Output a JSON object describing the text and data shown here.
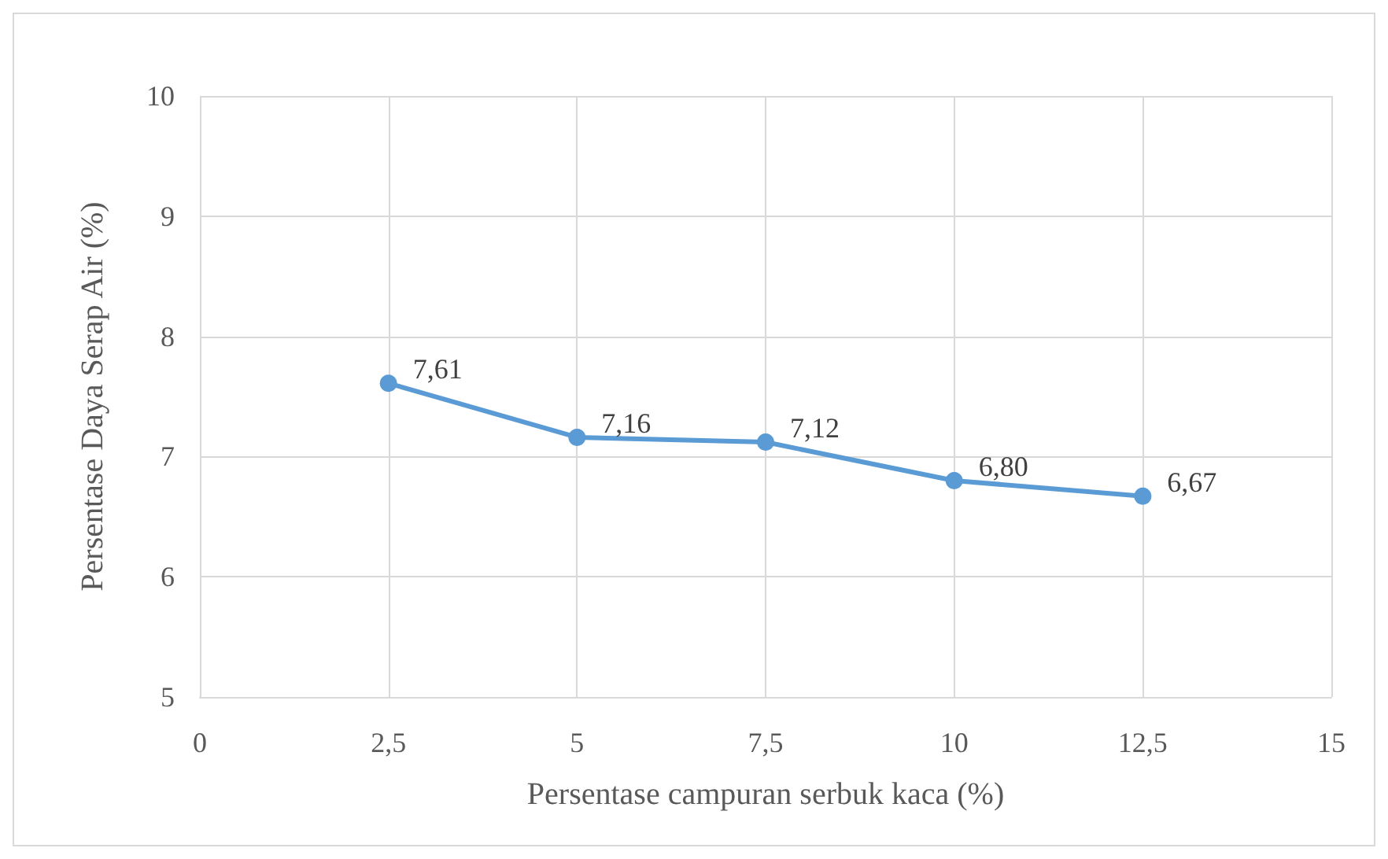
{
  "chart_data": {
    "type": "line",
    "xlabel": "Persentase campuran serbuk kaca (%)",
    "ylabel": "Persentase Daya Serap Air (%)",
    "x": [
      2.5,
      5,
      7.5,
      10,
      12.5
    ],
    "series": [
      {
        "color": "#5b9bd5",
        "values": [
          7.61,
          7.16,
          7.12,
          6.8,
          6.67
        ],
        "value_labels": [
          "7,61",
          "7,16",
          "7,12",
          "6,80",
          "6,67"
        ]
      }
    ],
    "xlim": [
      0,
      15
    ],
    "xticks": [
      0,
      {
        "value": 2.5,
        "label": "2,5"
      },
      5,
      {
        "value": 7.5,
        "label": "7,5"
      },
      10,
      {
        "value": 12.5,
        "label": "12,5"
      },
      15
    ],
    "ylim": [
      5,
      10
    ],
    "yticks": [
      5,
      6,
      7,
      8,
      9,
      10
    ],
    "grid": true,
    "marker": "circle",
    "line_style": "solid"
  }
}
